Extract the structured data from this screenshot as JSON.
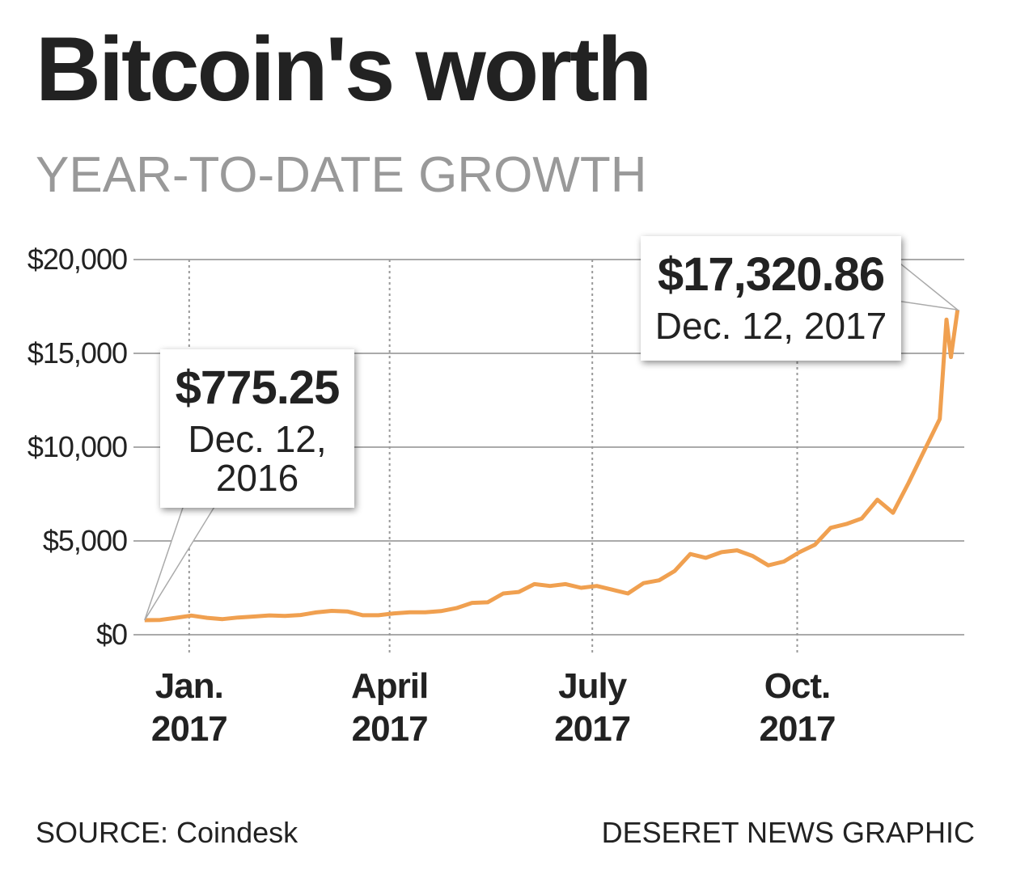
{
  "chart_data": {
    "type": "line",
    "title": "Bitcoin's worth",
    "subtitle": "YEAR-TO-DATE GROWTH",
    "source": "SOURCE: Coindesk",
    "credit": "DESERET NEWS GRAPHIC",
    "x": [
      "2016-12-12",
      "2016-12-19",
      "2016-12-26",
      "2017-01-02",
      "2017-01-09",
      "2017-01-16",
      "2017-01-23",
      "2017-01-30",
      "2017-02-06",
      "2017-02-13",
      "2017-02-20",
      "2017-02-27",
      "2017-03-06",
      "2017-03-13",
      "2017-03-20",
      "2017-03-27",
      "2017-04-03",
      "2017-04-10",
      "2017-04-17",
      "2017-04-24",
      "2017-05-01",
      "2017-05-08",
      "2017-05-15",
      "2017-05-22",
      "2017-05-29",
      "2017-06-05",
      "2017-06-12",
      "2017-06-19",
      "2017-06-26",
      "2017-07-03",
      "2017-07-10",
      "2017-07-17",
      "2017-07-24",
      "2017-07-31",
      "2017-08-07",
      "2017-08-14",
      "2017-08-21",
      "2017-08-28",
      "2017-09-04",
      "2017-09-11",
      "2017-09-18",
      "2017-09-25",
      "2017-10-02",
      "2017-10-09",
      "2017-10-16",
      "2017-10-23",
      "2017-10-30",
      "2017-11-06",
      "2017-11-13",
      "2017-11-20",
      "2017-11-27",
      "2017-12-04",
      "2017-12-07",
      "2017-12-09",
      "2017-12-12"
    ],
    "series": [
      {
        "name": "Bitcoin",
        "color": "#f0a050",
        "values": [
          775.25,
          790,
          900,
          1020,
          900,
          830,
          920,
          970,
          1030,
          1000,
          1050,
          1190,
          1270,
          1240,
          1040,
          1040,
          1140,
          1200,
          1200,
          1260,
          1420,
          1700,
          1730,
          2200,
          2280,
          2700,
          2600,
          2700,
          2500,
          2600,
          2400,
          2200,
          2750,
          2900,
          3400,
          4300,
          4100,
          4400,
          4500,
          4200,
          3700,
          3900,
          4400,
          4800,
          5700,
          5900,
          6200,
          7200,
          6500,
          8100,
          9800,
          11500,
          16800,
          14800,
          17320.86
        ]
      }
    ],
    "xlim": [
      "2016-12-07",
      "2017-12-15"
    ],
    "xticks": [
      {
        "value": "2017-01-01",
        "label": "Jan. 2017"
      },
      {
        "value": "2017-04-01",
        "label": "April 2017"
      },
      {
        "value": "2017-07-01",
        "label": "July 2017"
      },
      {
        "value": "2017-10-01",
        "label": "Oct. 2017"
      }
    ],
    "ylim": [
      0,
      20000
    ],
    "yticks": [
      {
        "value": 0,
        "label": "$0"
      },
      {
        "value": 5000,
        "label": "$5,000"
      },
      {
        "value": 10000,
        "label": "$10,000"
      },
      {
        "value": 15000,
        "label": "$15,000"
      },
      {
        "value": 20000,
        "label": "$20,000"
      }
    ],
    "grid": true,
    "annotations": [
      {
        "x": "2016-12-12",
        "value": 775.25,
        "label": "$775.25",
        "date": "Dec. 12, 2016"
      },
      {
        "x": "2017-12-12",
        "value": 17320.86,
        "label": "$17,320.86",
        "date": "Dec. 12, 2017"
      }
    ]
  }
}
